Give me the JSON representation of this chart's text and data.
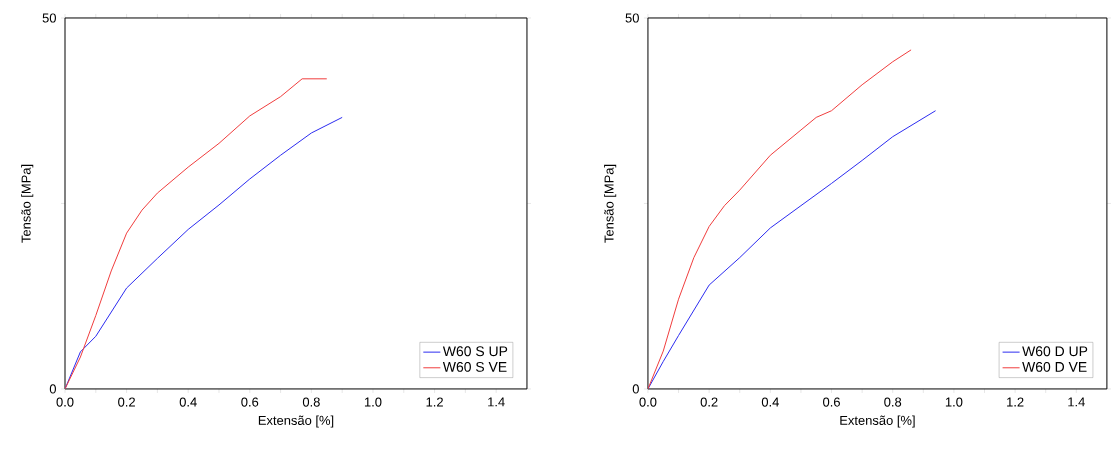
{
  "chart_data": [
    {
      "type": "line",
      "xlabel": "Extensão [%]",
      "ylabel": "Tensão [MPa]",
      "xlim": [
        0,
        1.5
      ],
      "ylim": [
        0,
        50
      ],
      "xticks": [
        {
          "value": 0,
          "label": "0.0"
        },
        {
          "value": 0.1,
          "label": null
        },
        0.2,
        {
          "value": 0.3,
          "label": null
        },
        0.4,
        {
          "value": 0.5,
          "label": null
        },
        0.6,
        {
          "value": 0.7,
          "label": null
        },
        0.8,
        {
          "value": 0.9,
          "label": null
        },
        {
          "value": 1.0,
          "label": "1.0"
        },
        {
          "value": 1.1,
          "label": null
        },
        1.2,
        {
          "value": 1.3,
          "label": null
        },
        1.4
      ],
      "yticks": [
        0,
        {
          "value": 25,
          "label": null
        },
        50
      ],
      "grid": false,
      "legend": "bottom right",
      "line_style": "solid",
      "series": [
        {
          "name": "W60 S UP",
          "color": "#2b2bf0",
          "x": [
            0,
            0.05,
            0.1,
            0.2,
            0.3,
            0.4,
            0.5,
            0.6,
            0.7,
            0.8,
            0.9
          ],
          "values": [
            0,
            5.0,
            7.1,
            13.6,
            17.6,
            21.5,
            24.8,
            28.3,
            31.5,
            34.5,
            36.6
          ]
        },
        {
          "name": "W60 S VE",
          "color": "#f03c3c",
          "x": [
            0,
            0.05,
            0.1,
            0.15,
            0.2,
            0.25,
            0.3,
            0.4,
            0.5,
            0.6,
            0.7,
            0.77,
            0.85
          ],
          "values": [
            0,
            4.3,
            9.9,
            15.9,
            21.0,
            24.1,
            26.4,
            29.9,
            33.1,
            36.8,
            39.4,
            41.8,
            41.8
          ]
        }
      ]
    },
    {
      "type": "line",
      "xlabel": "Extensão [%]",
      "ylabel": "Tensão [MPa]",
      "xlim": [
        0,
        1.5
      ],
      "ylim": [
        0,
        50
      ],
      "xticks": [
        {
          "value": 0,
          "label": "0.0"
        },
        {
          "value": 0.1,
          "label": null
        },
        0.2,
        {
          "value": 0.3,
          "label": null
        },
        0.4,
        {
          "value": 0.5,
          "label": null
        },
        0.6,
        {
          "value": 0.7,
          "label": null
        },
        0.8,
        {
          "value": 0.9,
          "label": null
        },
        {
          "value": 1.0,
          "label": "1.0"
        },
        {
          "value": 1.1,
          "label": null
        },
        1.2,
        {
          "value": 1.3,
          "label": null
        },
        1.4
      ],
      "yticks": [
        0,
        {
          "value": 25,
          "label": null
        },
        50
      ],
      "grid": false,
      "legend": "bottom right",
      "line_style": "solid",
      "series": [
        {
          "name": "W60 D UP",
          "color": "#2b2bf0",
          "x": [
            0,
            0.05,
            0.1,
            0.2,
            0.3,
            0.4,
            0.5,
            0.6,
            0.7,
            0.8,
            0.94
          ],
          "values": [
            0,
            3.7,
            7.2,
            14.0,
            17.7,
            21.7,
            24.7,
            27.7,
            30.8,
            34.0,
            37.5
          ]
        },
        {
          "name": "W60 D VE",
          "color": "#f03c3c",
          "x": [
            0,
            0.05,
            0.1,
            0.15,
            0.2,
            0.25,
            0.3,
            0.4,
            0.5,
            0.55,
            0.6,
            0.7,
            0.8,
            0.86
          ],
          "values": [
            0,
            5.1,
            12.1,
            17.7,
            21.9,
            24.7,
            26.8,
            31.5,
            34.9,
            36.6,
            37.5,
            41.0,
            44.1,
            45.7
          ]
        }
      ]
    }
  ]
}
